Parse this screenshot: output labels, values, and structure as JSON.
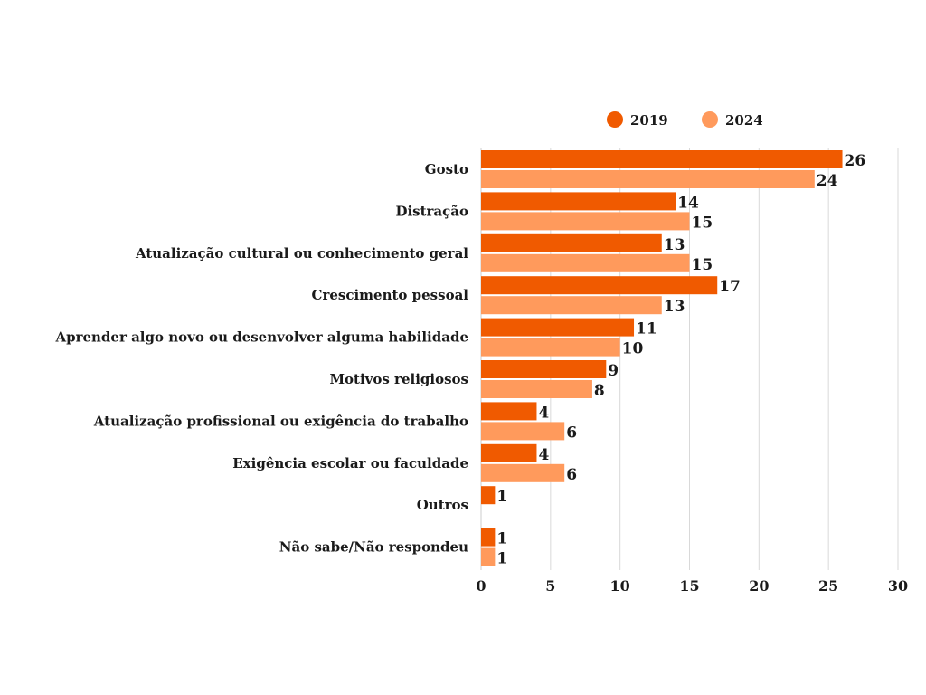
{
  "chart_data": {
    "type": "bar",
    "orientation": "horizontal",
    "categories": [
      "Gosto",
      "Distração",
      "Atualização cultural ou conhecimento geral",
      "Crescimento pessoal",
      "Aprender algo novo ou desenvolver alguma habilidade",
      "Motivos religiosos",
      "Atualização profissional ou exigência do trabalho",
      "Exigência escolar ou faculdade",
      "Outros",
      "Não sabe/Não respondeu"
    ],
    "series": [
      {
        "name": "2019",
        "color": "#f05a00",
        "values": [
          26,
          14,
          13,
          17,
          11,
          9,
          4,
          4,
          1,
          1
        ]
      },
      {
        "name": "2024",
        "color": "#ff9a5c",
        "values": [
          24,
          15,
          15,
          13,
          10,
          8,
          6,
          6,
          null,
          1
        ]
      }
    ],
    "xlim": [
      0,
      30
    ],
    "xticks": [
      "0",
      "5",
      "10",
      "15",
      "20",
      "25",
      "30"
    ],
    "grid": true,
    "legend_position": "top-right",
    "title": "",
    "xlabel": "",
    "ylabel": ""
  }
}
